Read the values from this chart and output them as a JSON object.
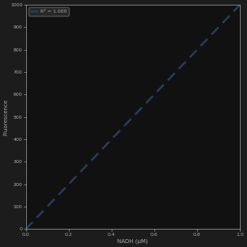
{
  "title": "",
  "xlabel": "NADH (μM)",
  "ylabel": "Fluorescence",
  "x_data": [
    0,
    0.1,
    0.2,
    0.3,
    0.4,
    0.5,
    0.6,
    0.7,
    0.8,
    0.9,
    1.0
  ],
  "y_data": [
    0,
    100,
    200,
    300,
    400,
    500,
    600,
    700,
    800,
    900,
    1000
  ],
  "xlim": [
    0,
    1.0
  ],
  "ylim": [
    0,
    1000
  ],
  "xticks": [
    0,
    0.2,
    0.4,
    0.6,
    0.8,
    1.0
  ],
  "yticks": [
    0,
    100,
    200,
    300,
    400,
    500,
    600,
    700,
    800,
    900,
    1000
  ],
  "legend_label": "R² = 1.000",
  "line_color": "#2d3a5e",
  "background_color": "#1c1c1c",
  "plot_bg_color": "#111111",
  "text_color": "#aaaaaa",
  "line_width": 1.8,
  "dpi": 100,
  "figsize": [
    3.12,
    3.12
  ]
}
